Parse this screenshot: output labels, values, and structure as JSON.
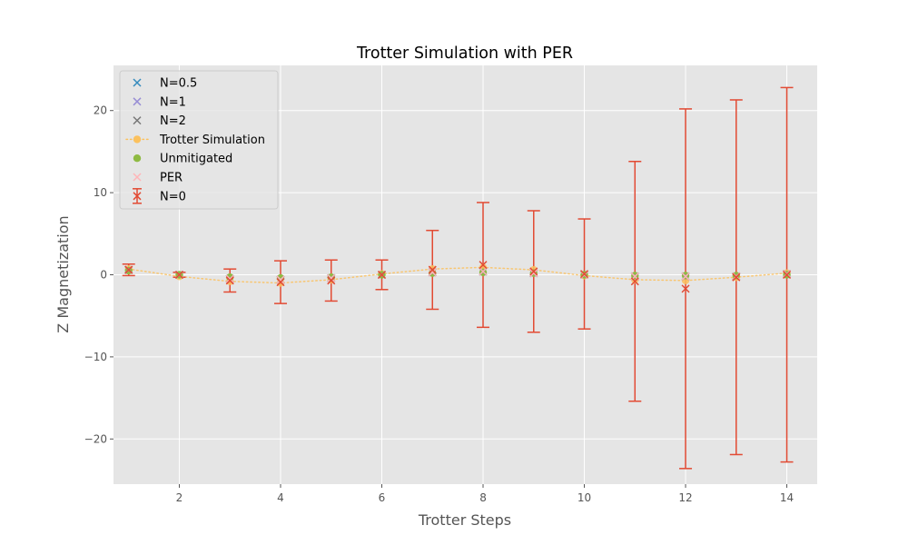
{
  "chart_data": {
    "type": "scatter",
    "title": "Trotter Simulation with PER",
    "xlabel": "Trotter Steps",
    "ylabel": "Z Magnetization",
    "xlim": [
      0.7,
      14.6
    ],
    "ylim": [
      -25.5,
      25.5
    ],
    "xticks": [
      2,
      4,
      6,
      8,
      10,
      12,
      14
    ],
    "yticks": [
      -20,
      -10,
      0,
      10,
      20
    ],
    "grid": true,
    "legend_position": "top-left",
    "x": [
      1,
      2,
      3,
      4,
      5,
      6,
      7,
      8,
      9,
      10,
      11,
      12,
      13,
      14
    ],
    "series": [
      {
        "name": "N=0.5",
        "marker": "x",
        "color": "#348ABD",
        "values": [
          0.6,
          0.0,
          -0.5,
          -0.6,
          -0.4,
          0.0,
          0.3,
          0.4,
          0.2,
          0.0,
          -0.2,
          -0.2,
          -0.2,
          0.1
        ]
      },
      {
        "name": "N=1",
        "marker": "x",
        "color": "#988ED5",
        "values": [
          0.6,
          0.0,
          -0.5,
          -0.6,
          -0.4,
          0.0,
          0.3,
          0.4,
          0.2,
          0.0,
          -0.2,
          -0.2,
          -0.2,
          0.1
        ]
      },
      {
        "name": "N=2",
        "marker": "x",
        "color": "#777777",
        "values": [
          0.6,
          0.0,
          -0.5,
          -0.6,
          -0.4,
          0.0,
          0.3,
          0.4,
          0.2,
          0.0,
          -0.2,
          -0.2,
          -0.2,
          0.1
        ]
      },
      {
        "name": "Trotter Simulation",
        "marker": "o-dotted",
        "color": "#FBC15E",
        "values": [
          0.7,
          -0.2,
          -0.8,
          -1.0,
          -0.6,
          0.1,
          0.7,
          0.9,
          0.6,
          -0.1,
          -0.6,
          -0.7,
          -0.3,
          0.2
        ]
      },
      {
        "name": "Unmitigated",
        "marker": "o",
        "color": "#8EBA42",
        "values": [
          0.5,
          0.0,
          -0.3,
          -0.4,
          -0.3,
          0.0,
          0.2,
          0.3,
          0.2,
          0.0,
          -0.1,
          -0.1,
          -0.1,
          0.0
        ]
      },
      {
        "name": "PER",
        "marker": "x",
        "color": "#FFB5B8",
        "values": [
          0.6,
          0.0,
          -0.5,
          -0.6,
          -0.4,
          0.0,
          0.3,
          0.4,
          0.2,
          0.0,
          -0.2,
          -0.2,
          -0.2,
          0.1
        ]
      },
      {
        "name": "N=0",
        "marker": "x-errorbar",
        "color": "#E24A33",
        "values": [
          0.6,
          0.0,
          -0.7,
          -0.9,
          -0.7,
          0.0,
          0.6,
          1.2,
          0.4,
          0.1,
          -0.8,
          -1.7,
          -0.3,
          0.0
        ],
        "errors": [
          0.7,
          0.3,
          1.4,
          2.6,
          2.5,
          1.8,
          4.8,
          7.6,
          7.4,
          6.7,
          14.6,
          21.9,
          21.6,
          22.8
        ]
      }
    ]
  }
}
